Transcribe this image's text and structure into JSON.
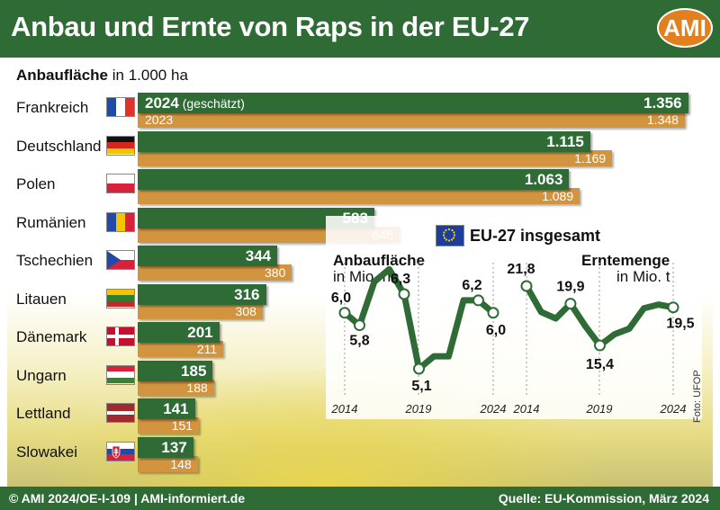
{
  "header": {
    "title": "Anbau und Ernte von Raps in der EU-27",
    "logo": "AMI"
  },
  "footer": {
    "left": "© AMI 2024/OE-I-109 | AMI-informiert.de",
    "right": "Quelle: EU-Kommission, März 2024"
  },
  "photo_credit": "Foto: UFOP",
  "colors": {
    "green": "#2e6b35",
    "orange": "#d39440",
    "logo": "#e2801f"
  },
  "chart_data": [
    {
      "type": "bar",
      "title_bold": "Anbaufläche",
      "title_unit": "in 1.000 ha",
      "legend": {
        "y2024": "2024",
        "y2024_note": "(geschätzt)",
        "y2023": "2023"
      },
      "categories": [
        "Frankreich",
        "Deutschland",
        "Polen",
        "Rumänien",
        "Tschechien",
        "Litauen",
        "Dänemark",
        "Ungarn",
        "Lettland",
        "Slowakei"
      ],
      "flags": [
        "france-flag",
        "germany-flag",
        "poland-flag",
        "romania-flag",
        "czechia-flag",
        "lithuania-flag",
        "denmark-flag",
        "hungary-flag",
        "latvia-flag",
        "slovakia-flag"
      ],
      "series": [
        {
          "name": "2024",
          "values": [
            1356,
            1115,
            1063,
            583,
            344,
            316,
            201,
            185,
            141,
            137
          ],
          "labels": [
            "1.356",
            "1.115",
            "1.063",
            "583",
            "344",
            "316",
            "201",
            "185",
            "141",
            "137"
          ]
        },
        {
          "name": "2023",
          "values": [
            1348,
            1169,
            1089,
            645,
            380,
            308,
            211,
            188,
            151,
            148
          ],
          "labels": [
            "1.348",
            "1.169",
            "1.089",
            "645",
            "380",
            "308",
            "211",
            "188",
            "151",
            "148"
          ]
        }
      ]
    },
    {
      "type": "line",
      "group_title": "EU-27 insgesamt",
      "title_bold": "Anbaufläche",
      "title_unit": "in Mio. ha",
      "x": [
        2014,
        2015,
        2016,
        2017,
        2018,
        2019,
        2020,
        2021,
        2022,
        2023,
        2024
      ],
      "values": [
        6.0,
        5.8,
        6.5,
        6.7,
        6.3,
        5.1,
        5.3,
        5.3,
        6.2,
        6.2,
        6.0
      ],
      "point_labels": [
        {
          "index": 0,
          "text": "6,0"
        },
        {
          "index": 1,
          "text": "5,8"
        },
        {
          "index": 4,
          "text": "6,3"
        },
        {
          "index": 5,
          "text": "5,1"
        },
        {
          "index": 9,
          "text": "6,2"
        },
        {
          "index": 10,
          "text": "6,0"
        }
      ],
      "ticks": [
        "2014",
        "2019",
        "2024"
      ]
    },
    {
      "type": "line",
      "title_bold": "Erntemenge",
      "title_unit": "in Mio. t",
      "x": [
        2014,
        2015,
        2016,
        2017,
        2018,
        2019,
        2020,
        2021,
        2022,
        2023,
        2024
      ],
      "values": [
        21.8,
        19.0,
        18.3,
        19.9,
        17.5,
        15.4,
        16.6,
        17.2,
        19.4,
        19.8,
        19.5
      ],
      "point_labels": [
        {
          "index": 0,
          "text": "21,8"
        },
        {
          "index": 3,
          "text": "19,9"
        },
        {
          "index": 5,
          "text": "15,4"
        },
        {
          "index": 10,
          "text": "19,5"
        }
      ],
      "ticks": [
        "2014",
        "2019",
        "2024"
      ]
    }
  ]
}
